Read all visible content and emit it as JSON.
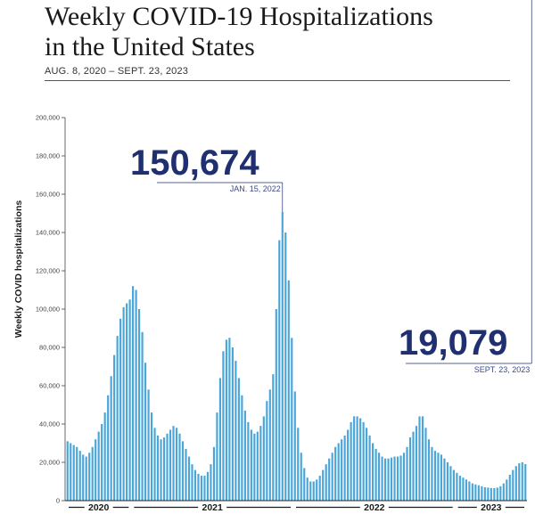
{
  "header": {
    "title_line1": "Weekly COVID-19 Hospitalizations",
    "title_line2": "in the United States",
    "subtitle": "AUG. 8, 2020 – SEPT. 23, 2023"
  },
  "colors": {
    "bar": "#4aa6d9",
    "accent": "#1f2f70",
    "axis": "#444444"
  },
  "chart_data": {
    "type": "bar",
    "title": "Weekly COVID-19 Hospitalizations in the United States",
    "subtitle": "AUG. 8, 2020 – SEPT. 23, 2023",
    "ylabel": "Weekly COVID hospitalizations",
    "ylim": [
      0,
      200000
    ],
    "yticks": [
      0,
      20000,
      40000,
      60000,
      80000,
      100000,
      120000,
      140000,
      160000,
      180000,
      200000
    ],
    "ytick_labels": [
      "0",
      "20,000",
      "40,000",
      "60,000",
      "80,000",
      "100,000",
      "120,000",
      "140,000",
      "160,000",
      "180,000",
      "200,000"
    ],
    "x_year_labels": [
      "2020",
      "2021",
      "2022",
      "2023"
    ],
    "x_year_start_index": [
      0,
      21,
      73,
      125
    ],
    "grid": false,
    "legend": "none",
    "values": [
      31000,
      30000,
      29000,
      28000,
      26000,
      24000,
      23000,
      25000,
      28000,
      32000,
      36000,
      40000,
      46000,
      55000,
      65000,
      76000,
      86000,
      95000,
      101000,
      103000,
      105000,
      112000,
      110000,
      100000,
      88000,
      72000,
      58000,
      46000,
      38000,
      34000,
      32000,
      33000,
      35000,
      37000,
      39000,
      38000,
      35000,
      31000,
      27000,
      23000,
      19000,
      16000,
      14000,
      13000,
      13000,
      15000,
      19000,
      28000,
      46000,
      64000,
      78000,
      84000,
      85000,
      80000,
      73000,
      64000,
      55000,
      47000,
      41000,
      37000,
      35000,
      36000,
      39000,
      44000,
      52000,
      58000,
      66000,
      100000,
      136000,
      150674,
      140000,
      115000,
      85000,
      57000,
      38000,
      25000,
      17000,
      12000,
      10000,
      10000,
      11000,
      13000,
      16000,
      19000,
      22000,
      25000,
      28000,
      30000,
      32000,
      34000,
      37000,
      41000,
      44000,
      44000,
      43000,
      41000,
      38000,
      34000,
      30000,
      27000,
      25000,
      23000,
      22000,
      22000,
      22500,
      23000,
      23000,
      23500,
      25000,
      28000,
      33000,
      36000,
      39000,
      44000,
      44000,
      38000,
      32000,
      28000,
      26000,
      25000,
      24000,
      22000,
      20000,
      18000,
      16000,
      14500,
      13000,
      12000,
      11000,
      10000,
      9000,
      8500,
      8000,
      7500,
      7000,
      6800,
      6600,
      6500,
      6800,
      7500,
      9000,
      11000,
      13500,
      16000,
      18000,
      19500,
      20000,
      19079
    ],
    "annotations": [
      {
        "value": "150,674",
        "date": "JAN. 15, 2022",
        "bar_index": 69
      },
      {
        "value": "19,079",
        "date": "SEPT. 23, 2023",
        "bar_index": 149
      }
    ]
  }
}
